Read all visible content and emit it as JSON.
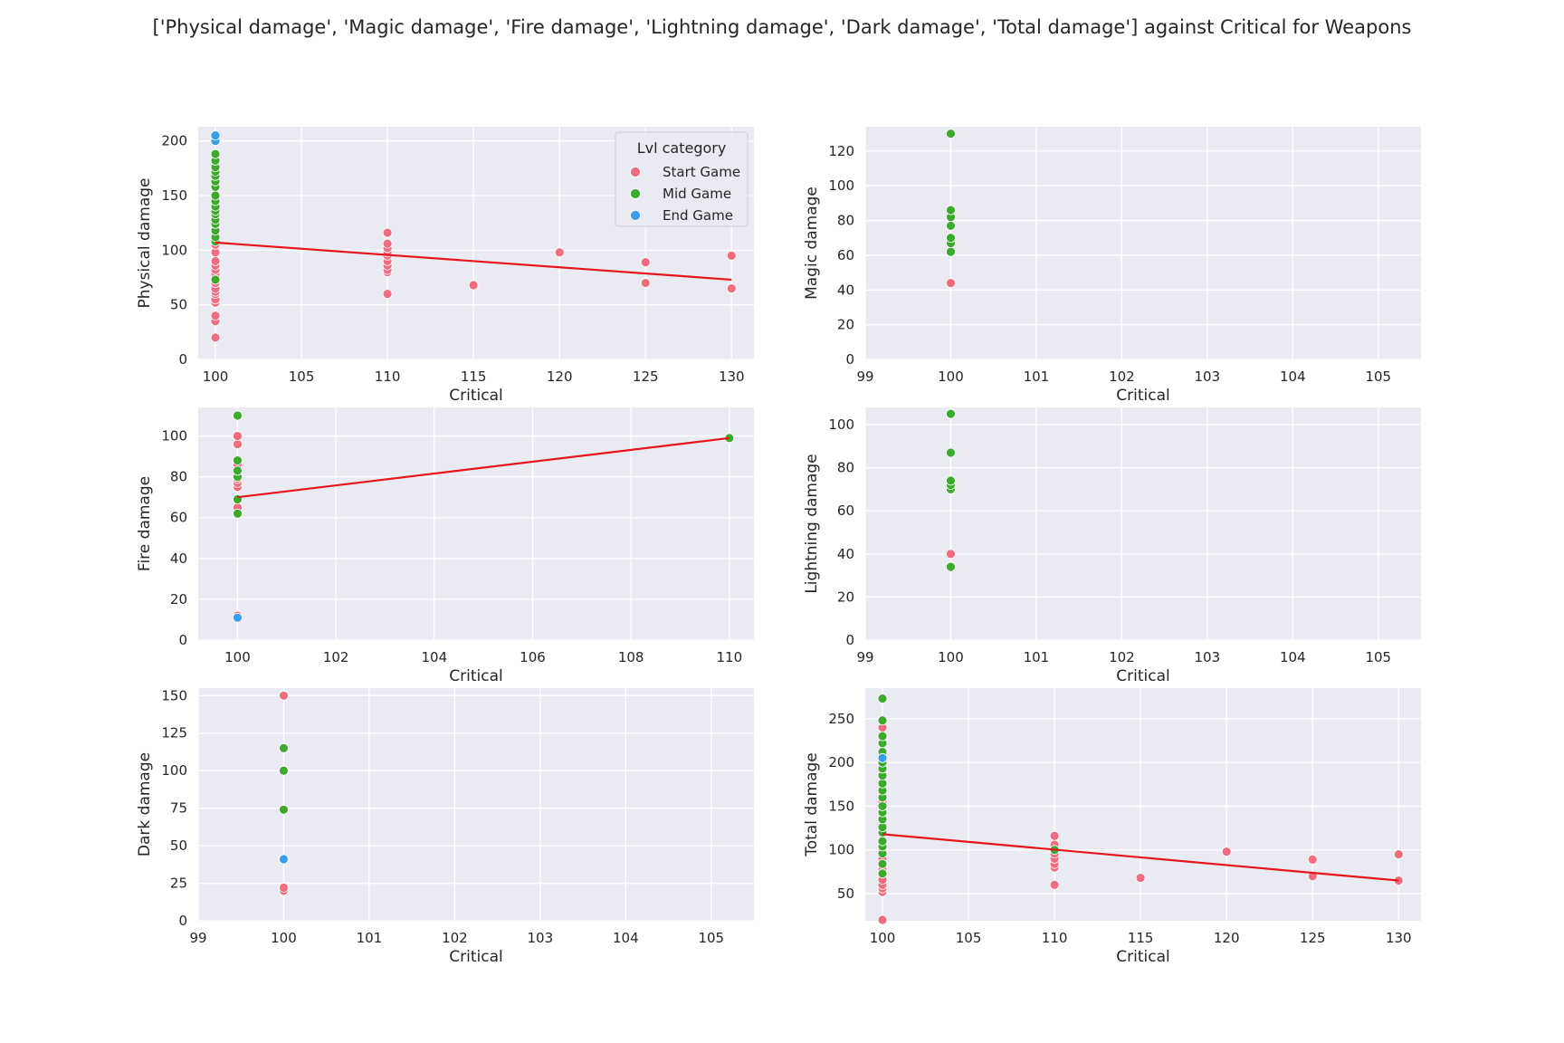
{
  "figure": {
    "title": "['Physical damage', 'Magic damage', 'Fire damage', 'Lightning damage', 'Dark damage', 'Total damage'] against Critical for Weapons"
  },
  "legend": {
    "title": "Lvl category",
    "items": [
      {
        "label": "Start Game",
        "color": "#f06c80"
      },
      {
        "label": "Mid Game",
        "color": "#3da92f"
      },
      {
        "label": "End Game",
        "color": "#3b9ee8"
      }
    ]
  },
  "colors": {
    "start": "#f06c80",
    "mid": "#3da92f",
    "end": "#3b9ee8",
    "trend": "#e8141e",
    "panel": "#eaeaf2",
    "grid": "#ffffff"
  },
  "chart_data": [
    {
      "type": "scatter",
      "xlabel": "Critical",
      "ylabel": "Physical damage",
      "xlim": [
        99,
        131.3
      ],
      "ylim": [
        0,
        213
      ],
      "xticks": [
        100,
        105,
        110,
        115,
        120,
        125,
        130
      ],
      "yticks": [
        0,
        50,
        100,
        150,
        200
      ],
      "series": [
        {
          "name": "Start Game",
          "points": [
            [
              100,
              20
            ],
            [
              100,
              35
            ],
            [
              100,
              40
            ],
            [
              100,
              52
            ],
            [
              100,
              55
            ],
            [
              100,
              60
            ],
            [
              100,
              62
            ],
            [
              100,
              65
            ],
            [
              100,
              70
            ],
            [
              100,
              78
            ],
            [
              100,
              82
            ],
            [
              100,
              86
            ],
            [
              100,
              90
            ],
            [
              100,
              98
            ],
            [
              100,
              105
            ],
            [
              100,
              110
            ],
            [
              100,
              115
            ],
            [
              100,
              120
            ],
            [
              110,
              60
            ],
            [
              110,
              80
            ],
            [
              110,
              82
            ],
            [
              110,
              86
            ],
            [
              110,
              90
            ],
            [
              110,
              95
            ],
            [
              110,
              98
            ],
            [
              110,
              102
            ],
            [
              110,
              106
            ],
            [
              110,
              116
            ],
            [
              115,
              68
            ],
            [
              120,
              98
            ],
            [
              125,
              70
            ],
            [
              125,
              89
            ],
            [
              130,
              65
            ],
            [
              130,
              95
            ]
          ]
        },
        {
          "name": "Mid Game",
          "points": [
            [
              100,
              73
            ],
            [
              100,
              108
            ],
            [
              100,
              112
            ],
            [
              100,
              118
            ],
            [
              100,
              124
            ],
            [
              100,
              128
            ],
            [
              100,
              133
            ],
            [
              100,
              136
            ],
            [
              100,
              140
            ],
            [
              100,
              145
            ],
            [
              100,
              150
            ],
            [
              100,
              158
            ],
            [
              100,
              163
            ],
            [
              100,
              168
            ],
            [
              100,
              172
            ],
            [
              100,
              176
            ],
            [
              100,
              182
            ],
            [
              100,
              188
            ]
          ]
        },
        {
          "name": "End Game",
          "points": [
            [
              100,
              200
            ],
            [
              100,
              205
            ]
          ]
        }
      ],
      "trendline": [
        [
          100,
          107
        ],
        [
          130,
          73
        ]
      ],
      "legend": "top-right"
    },
    {
      "type": "scatter",
      "xlabel": "Critical",
      "ylabel": "Magic damage",
      "xlim": [
        99,
        105.5
      ],
      "ylim": [
        0,
        134
      ],
      "xticks": [
        99,
        100,
        101,
        102,
        103,
        104,
        105
      ],
      "yticks": [
        0,
        20,
        40,
        60,
        80,
        100,
        120
      ],
      "series": [
        {
          "name": "Start Game",
          "points": [
            [
              100,
              44
            ]
          ]
        },
        {
          "name": "Mid Game",
          "points": [
            [
              100,
              62
            ],
            [
              100,
              67
            ],
            [
              100,
              70
            ],
            [
              100,
              77
            ],
            [
              100,
              82
            ],
            [
              100,
              86
            ],
            [
              100,
              130
            ]
          ]
        }
      ]
    },
    {
      "type": "scatter",
      "xlabel": "Critical",
      "ylabel": "Fire damage",
      "xlim": [
        99.2,
        110.5
      ],
      "ylim": [
        0,
        114
      ],
      "xticks": [
        100,
        102,
        104,
        106,
        108,
        110
      ],
      "yticks": [
        0,
        20,
        40,
        60,
        80,
        100
      ],
      "series": [
        {
          "name": "Start Game",
          "points": [
            [
              100,
              12
            ],
            [
              100,
              65
            ],
            [
              100,
              75
            ],
            [
              100,
              77
            ],
            [
              100,
              79
            ],
            [
              100,
              86
            ],
            [
              100,
              96
            ],
            [
              100,
              100
            ]
          ]
        },
        {
          "name": "Mid Game",
          "points": [
            [
              100,
              62
            ],
            [
              100,
              69
            ],
            [
              100,
              80
            ],
            [
              100,
              83
            ],
            [
              100,
              88
            ],
            [
              100,
              110
            ],
            [
              110,
              99
            ]
          ]
        },
        {
          "name": "End Game",
          "points": [
            [
              100,
              11
            ]
          ]
        }
      ],
      "trendline": [
        [
          100,
          70
        ],
        [
          110,
          99
        ]
      ]
    },
    {
      "type": "scatter",
      "xlabel": "Critical",
      "ylabel": "Lightning damage",
      "xlim": [
        99,
        105.5
      ],
      "ylim": [
        0,
        108
      ],
      "xticks": [
        99,
        100,
        101,
        102,
        103,
        104,
        105
      ],
      "yticks": [
        0,
        20,
        40,
        60,
        80,
        100
      ],
      "series": [
        {
          "name": "Start Game",
          "points": [
            [
              100,
              40
            ]
          ]
        },
        {
          "name": "Mid Game",
          "points": [
            [
              100,
              34
            ],
            [
              100,
              70
            ],
            [
              100,
              72
            ],
            [
              100,
              74
            ],
            [
              100,
              87
            ],
            [
              100,
              105
            ]
          ]
        }
      ]
    },
    {
      "type": "scatter",
      "xlabel": "Critical",
      "ylabel": "Dark damage",
      "xlim": [
        99,
        105.5
      ],
      "ylim": [
        0,
        155
      ],
      "xticks": [
        99,
        100,
        101,
        102,
        103,
        104,
        105
      ],
      "yticks": [
        0,
        25,
        50,
        75,
        100,
        125,
        150
      ],
      "series": [
        {
          "name": "Start Game",
          "points": [
            [
              100,
              20
            ],
            [
              100,
              22
            ],
            [
              100,
              150
            ]
          ]
        },
        {
          "name": "Mid Game",
          "points": [
            [
              100,
              74
            ],
            [
              100,
              100
            ],
            [
              100,
              115
            ]
          ]
        },
        {
          "name": "End Game",
          "points": [
            [
              100,
              41
            ]
          ]
        }
      ]
    },
    {
      "type": "scatter",
      "xlabel": "Critical",
      "ylabel": "Total damage",
      "xlim": [
        99,
        131.3
      ],
      "ylim": [
        19,
        285
      ],
      "xticks": [
        100,
        105,
        110,
        115,
        120,
        125,
        130
      ],
      "yticks": [
        50,
        100,
        150,
        200,
        250
      ],
      "series": [
        {
          "name": "Start Game",
          "points": [
            [
              100,
              20
            ],
            [
              100,
              52
            ],
            [
              100,
              56
            ],
            [
              100,
              60
            ],
            [
              100,
              66
            ],
            [
              100,
              78
            ],
            [
              100,
              90
            ],
            [
              100,
              100
            ],
            [
              100,
              112
            ],
            [
              100,
              118
            ],
            [
              100,
              125
            ],
            [
              100,
              155
            ],
            [
              100,
              165
            ],
            [
              100,
              188
            ],
            [
              100,
              230
            ],
            [
              100,
              240
            ],
            [
              110,
              60
            ],
            [
              110,
              80
            ],
            [
              110,
              84
            ],
            [
              110,
              90
            ],
            [
              110,
              96
            ],
            [
              110,
              106
            ],
            [
              110,
              116
            ],
            [
              115,
              68
            ],
            [
              120,
              98
            ],
            [
              125,
              70
            ],
            [
              125,
              89
            ],
            [
              130,
              65
            ],
            [
              130,
              95
            ]
          ]
        },
        {
          "name": "Mid Game",
          "points": [
            [
              100,
              73
            ],
            [
              100,
              84
            ],
            [
              100,
              96
            ],
            [
              100,
              104
            ],
            [
              100,
              110
            ],
            [
              100,
              120
            ],
            [
              100,
              126
            ],
            [
              100,
              135
            ],
            [
              100,
              143
            ],
            [
              100,
              150
            ],
            [
              100,
              160
            ],
            [
              100,
              168
            ],
            [
              100,
              176
            ],
            [
              100,
              185
            ],
            [
              100,
              193
            ],
            [
              100,
              200
            ],
            [
              100,
              212
            ],
            [
              100,
              222
            ],
            [
              100,
              230
            ],
            [
              100,
              248
            ],
            [
              100,
              273
            ],
            [
              110,
              100
            ]
          ]
        },
        {
          "name": "End Game",
          "points": [
            [
              100,
              205
            ]
          ]
        }
      ],
      "trendline": [
        [
          100,
          118
        ],
        [
          130,
          65
        ]
      ]
    }
  ]
}
